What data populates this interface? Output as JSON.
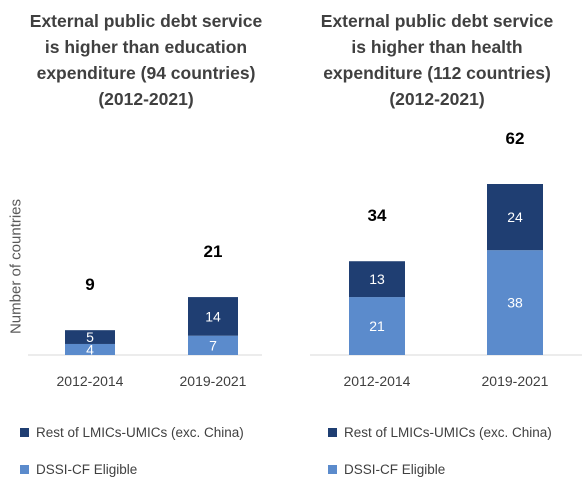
{
  "colors": {
    "rest": "#1f3e72",
    "dssi": "#5b8bcc",
    "axis": "#d9d9d9",
    "text": "#404040"
  },
  "chart_data": [
    {
      "type": "bar",
      "stacked": true,
      "title_lines": [
        "External public debt service",
        "is higher than education",
        "expenditure (94 countries)",
        "(2012-2021)"
      ],
      "ylabel": "Number of countries",
      "categories": [
        "2012-2014",
        "2019-2021"
      ],
      "series": [
        {
          "name": "DSSI-CF Eligible",
          "values": [
            4,
            7
          ]
        },
        {
          "name": "Rest of LMICs-UMICs (exc. China)",
          "values": [
            5,
            14
          ]
        }
      ],
      "totals": [
        9,
        21
      ],
      "ylim": [
        0,
        62
      ],
      "legend_position": "bottom"
    },
    {
      "type": "bar",
      "stacked": true,
      "title_lines": [
        "External public debt service",
        "is higher than health",
        "expenditure (112 countries)",
        "(2012-2021)"
      ],
      "ylabel": "",
      "categories": [
        "2012-2014",
        "2019-2021"
      ],
      "series": [
        {
          "name": "DSSI-CF Eligible",
          "values": [
            21,
            38
          ]
        },
        {
          "name": "Rest of LMICs-UMICs (exc. China)",
          "values": [
            13,
            24
          ]
        }
      ],
      "totals": [
        34,
        62
      ],
      "ylim": [
        0,
        62
      ],
      "legend_position": "bottom"
    }
  ]
}
